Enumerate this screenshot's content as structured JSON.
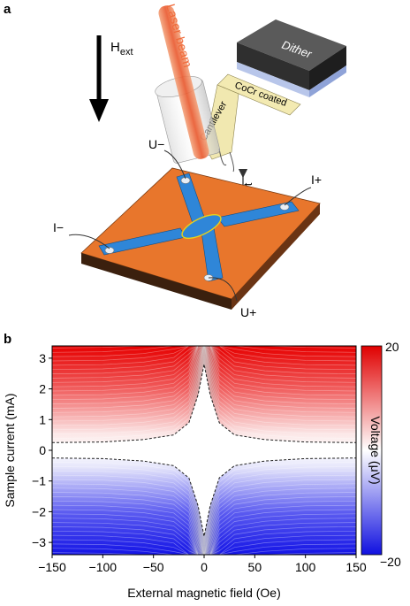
{
  "panel_a": {
    "label": "a",
    "field_label": "H",
    "field_subscript": "ext",
    "laser_label": "Laser beam",
    "dither_label": "Dither",
    "coating_label": "CoCr coated",
    "cantilever_label": "Cantilever",
    "lift_label": "Lift",
    "u_minus": "U−",
    "u_plus": "U+",
    "i_minus": "I−",
    "i_plus": "I+"
  },
  "panel_b": {
    "label": "b"
  },
  "colors": {
    "substrate": "#e8762c",
    "electrode": "#2f86d8",
    "laser": "#f06a3a",
    "positive": "#e00000",
    "negative": "#1010e0",
    "ellipse": "#e8d21a"
  },
  "chart_data": {
    "type": "heatmap",
    "xlabel": "External magnetic field (Oe)",
    "ylabel": "Sample current (mA)",
    "colorbar_label": "Voltage (μV)",
    "xlim": [
      -150,
      150
    ],
    "ylim": [
      -3.4,
      3.4
    ],
    "x_ticks": [
      -150,
      -100,
      -50,
      0,
      50,
      100,
      150
    ],
    "y_ticks": [
      -3,
      -2,
      -1,
      0,
      1,
      2,
      3
    ],
    "colorbar_range": [
      -20,
      20
    ],
    "colorbar_tick_labels": [
      "20",
      "−20"
    ],
    "colormap": "blue-white-red",
    "critical_current_boundary": {
      "description": "dashed black contour outlining zero-voltage region",
      "points": [
        {
          "x": -150,
          "y": 0.25
        },
        {
          "x": -100,
          "y": 0.27
        },
        {
          "x": -60,
          "y": 0.35
        },
        {
          "x": -30,
          "y": 0.5
        },
        {
          "x": -15,
          "y": 0.9
        },
        {
          "x": -6,
          "y": 1.8
        },
        {
          "x": 0,
          "y": 2.8
        },
        {
          "x": 6,
          "y": 1.8
        },
        {
          "x": 15,
          "y": 0.9
        },
        {
          "x": 30,
          "y": 0.5
        },
        {
          "x": 60,
          "y": 0.35
        },
        {
          "x": 100,
          "y": 0.27
        },
        {
          "x": 150,
          "y": 0.25
        }
      ]
    }
  }
}
